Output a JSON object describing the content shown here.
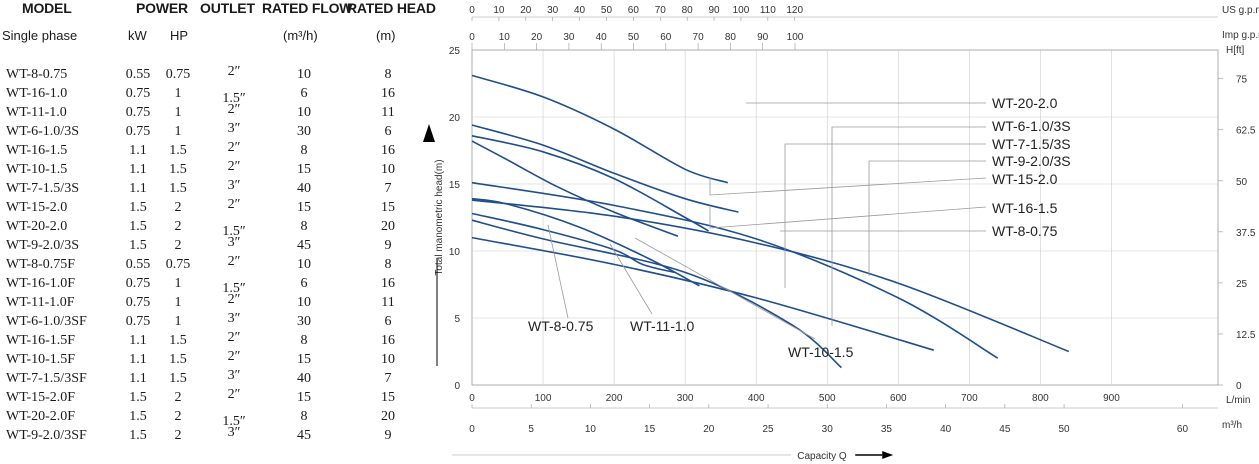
{
  "table": {
    "headers": {
      "model": "MODEL",
      "power": "POWER",
      "outlet": "OUTLET",
      "flow": "RATED FLOW",
      "head": "RATED HEAD",
      "phase": "Single phase",
      "kw": "kW",
      "hp": "HP",
      "flow_unit": "(m³/h)",
      "head_unit": "(m)"
    },
    "rows": [
      {
        "model": "WT-8-0.75",
        "kw": "0.55",
        "hp": "0.75",
        "outlet": "2″",
        "flow": "10",
        "head": "8"
      },
      {
        "model": "WT-16-1.0",
        "kw": "0.75",
        "hp": "1",
        "outlet": "1.5″",
        "flow": "6",
        "head": "16"
      },
      {
        "model": "WT-11-1.0",
        "kw": "0.75",
        "hp": "1",
        "outlet": "2″",
        "flow": "10",
        "head": "11"
      },
      {
        "model": "WT-6-1.0/3S",
        "kw": "0.75",
        "hp": "1",
        "outlet": "3″",
        "flow": "30",
        "head": "6"
      },
      {
        "model": "WT-16-1.5",
        "kw": "1.1",
        "hp": "1.5",
        "outlet": "2″",
        "flow": "8",
        "head": "16"
      },
      {
        "model": "WT-10-1.5",
        "kw": "1.1",
        "hp": "1.5",
        "outlet": "2″",
        "flow": "15",
        "head": "10"
      },
      {
        "model": "WT-7-1.5/3S",
        "kw": "1.1",
        "hp": "1.5",
        "outlet": "3″",
        "flow": "40",
        "head": "7"
      },
      {
        "model": "WT-15-2.0",
        "kw": "1.5",
        "hp": "2",
        "outlet": "2″",
        "flow": "15",
        "head": "15"
      },
      {
        "model": "WT-20-2.0",
        "kw": "1.5",
        "hp": "2",
        "outlet": "1.5″",
        "flow": "8",
        "head": "20"
      },
      {
        "model": "WT-9-2.0/3S",
        "kw": "1.5",
        "hp": "2",
        "outlet": "3″",
        "flow": "45",
        "head": "9"
      },
      {
        "model": "WT-8-0.75F",
        "kw": "0.55",
        "hp": "0.75",
        "outlet": "2″",
        "flow": "10",
        "head": "8"
      },
      {
        "model": "WT-16-1.0F",
        "kw": "0.75",
        "hp": "1",
        "outlet": "1.5″",
        "flow": "6",
        "head": "16"
      },
      {
        "model": "WT-11-1.0F",
        "kw": "0.75",
        "hp": "1",
        "outlet": "2″",
        "flow": "10",
        "head": "11"
      },
      {
        "model": "WT-6-1.0/3SF",
        "kw": "0.75",
        "hp": "1",
        "outlet": "3″",
        "flow": "30",
        "head": "6"
      },
      {
        "model": "WT-16-1.5F",
        "kw": "1.1",
        "hp": "1.5",
        "outlet": "2″",
        "flow": "8",
        "head": "16"
      },
      {
        "model": "WT-10-1.5F",
        "kw": "1.1",
        "hp": "1.5",
        "outlet": "2″",
        "flow": "15",
        "head": "10"
      },
      {
        "model": "WT-7-1.5/3SF",
        "kw": "1.1",
        "hp": "1.5",
        "outlet": "3″",
        "flow": "40",
        "head": "7"
      },
      {
        "model": "WT-15-2.0F",
        "kw": "1.5",
        "hp": "2",
        "outlet": "2″",
        "flow": "15",
        "head": "15"
      },
      {
        "model": "WT-20-2.0F",
        "kw": "1.5",
        "hp": "2",
        "outlet": "1.5″",
        "flow": "8",
        "head": "20"
      },
      {
        "model": "WT-9-2.0/3SF",
        "kw": "1.5",
        "hp": "2",
        "outlet": "3″",
        "flow": "45",
        "head": "9"
      }
    ]
  },
  "chart_data": {
    "type": "line",
    "title": "",
    "xlabel": "Capacity Q",
    "ylabel": "Total manometric head(m)",
    "xlim": [
      0,
      1050
    ],
    "ylim": [
      0,
      25
    ],
    "grid": true,
    "x_unit": "L/min",
    "y_unit_right": "H[ft]",
    "axes": {
      "lmin_ticks": [
        "0",
        "100",
        "200",
        "300",
        "400",
        "500",
        "600",
        "700",
        "800",
        "900"
      ],
      "m_ticks": [
        "0",
        "10",
        "15",
        "20",
        "25",
        "30",
        "35",
        "40",
        "45",
        "50",
        "60"
      ],
      "m3h_ticks": [
        "0",
        "5",
        "10",
        "15",
        "20",
        "25",
        "30",
        "35",
        "40",
        "45",
        "50",
        "60"
      ],
      "m3h_unit": "m³/h",
      "usgpm_ticks": [
        "0",
        "10",
        "20",
        "30",
        "40",
        "50",
        "60",
        "70",
        "80",
        "90",
        "100",
        "110",
        "120"
      ],
      "usgpm_unit": "US g.p.m.",
      "impgpm_ticks": [
        "0",
        "10",
        "20",
        "30",
        "40",
        "50",
        "60",
        "70",
        "80",
        "90",
        "100"
      ],
      "impgpm_unit": "Imp g.p.m.",
      "ft_ticks": [
        "0",
        "12.5",
        "25",
        "37.5",
        "50",
        "62.5",
        "75"
      ],
      "left_ticks": [
        "0",
        "5",
        "10",
        "15",
        "20",
        "25"
      ]
    },
    "series": [
      {
        "name": "WT-20-2.0",
        "x": [
          0,
          100,
          200,
          300,
          360
        ],
        "y": [
          23.1,
          21.5,
          19.1,
          16.1,
          15.1
        ]
      },
      {
        "name": "WT-16-1.5",
        "x": [
          0,
          100,
          200,
          300,
          375
        ],
        "y": [
          19.4,
          17.9,
          15.8,
          13.9,
          12.9
        ]
      },
      {
        "name": "WT-15-2.0",
        "x": [
          0,
          100,
          200,
          300,
          333
        ],
        "y": [
          18.6,
          17.4,
          15.4,
          12.5,
          11.5
        ]
      },
      {
        "name": "WT-16-1.0",
        "x": [
          0,
          50,
          120,
          200,
          290
        ],
        "y": [
          18.2,
          16.8,
          14.8,
          12.9,
          11.1
        ]
      },
      {
        "name": "WT-6-1.0/3S",
        "x": [
          0,
          200,
          400,
          600,
          740
        ],
        "y": [
          15.1,
          13.4,
          10.9,
          6.5,
          2.0
        ]
      },
      {
        "name": "WT-7-1.5/3S",
        "x": [
          0,
          200,
          400,
          600,
          840
        ],
        "y": [
          13.8,
          12.6,
          10.6,
          7.6,
          2.5
        ]
      },
      {
        "name": "WT-10-1.5",
        "x": [
          0,
          50,
          150,
          250,
          320
        ],
        "y": [
          13.9,
          13.5,
          11.8,
          9.4,
          7.4
        ]
      },
      {
        "name": "WT-11-1.0",
        "x": [
          0,
          100,
          200,
          240,
          285
        ],
        "y": [
          12.8,
          11.6,
          10.1,
          9.0,
          8.4
        ]
      },
      {
        "name": "WT-9-2.0/3S",
        "x": [
          0,
          200,
          400,
          650
        ],
        "y": [
          11.0,
          9.0,
          6.5,
          2.6
        ]
      },
      {
        "name": "WT-8-0.75",
        "x": [
          0,
          100,
          300,
          450,
          520
        ],
        "y": [
          12.3,
          10.9,
          8.4,
          4.5,
          1.3
        ]
      }
    ],
    "labels": [
      {
        "text": "WT-20-2.0",
        "series": "WT-20-2.0"
      },
      {
        "text": "WT-6-1.0/3S",
        "series": "WT-6-1.0/3S"
      },
      {
        "text": "WT-7-1.5/3S",
        "series": "WT-7-1.5/3S"
      },
      {
        "text": "WT-9-2.0/3S",
        "series": "WT-9-2.0/3S"
      },
      {
        "text": "WT-15-2.0",
        "series": "WT-15-2.0"
      },
      {
        "text": "WT-16-1.5",
        "series": "WT-16-1.5"
      },
      {
        "text": "WT-8-0.75",
        "series": "WT-8-0.75"
      },
      {
        "text": "WT-8-0.75",
        "series": "WT-8-0.75"
      },
      {
        "text": "WT-11-1.0",
        "series": "WT-11-1.0"
      },
      {
        "text": "WT-10-1.5",
        "series": "WT-10-1.5"
      }
    ],
    "colors": {
      "curve": "#1f4e8c",
      "leader": "#9a9a9a",
      "grid": "#cccccc"
    }
  }
}
